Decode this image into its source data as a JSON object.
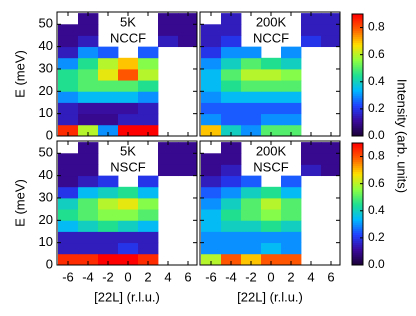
{
  "chart_data": [
    {
      "type": "heatmap",
      "annotation": [
        "5K",
        "NCCF"
      ],
      "ylabel": "E (meV)",
      "x_bins": [
        -7,
        -5,
        -3,
        -1,
        1,
        3,
        5,
        7
      ],
      "y_bins": [
        0,
        5,
        10,
        15,
        20,
        25,
        30,
        35,
        40,
        45,
        50,
        55
      ],
      "xlim": [
        -7.1,
        6.9
      ],
      "ylim": [
        0,
        55.5
      ],
      "xticks": [
        -6,
        -4,
        -2,
        0,
        2,
        4,
        6
      ],
      "yticks": [
        0,
        10,
        20,
        30,
        40,
        50
      ],
      "values": [
        [
          0.85,
          0.6,
          0.3,
          0.9,
          0.9,
          null,
          null
        ],
        [
          0.15,
          0.1,
          0.1,
          0.15,
          0.15,
          null,
          null
        ],
        [
          0.15,
          0.12,
          0.12,
          0.12,
          0.15,
          null,
          null
        ],
        [
          0.3,
          0.35,
          0.35,
          0.35,
          0.3,
          null,
          null
        ],
        [
          0.45,
          0.5,
          0.5,
          0.5,
          0.45,
          null,
          null
        ],
        [
          0.45,
          0.5,
          0.65,
          0.8,
          0.6,
          null,
          null
        ],
        [
          0.3,
          0.45,
          0.6,
          0.7,
          0.55,
          null,
          null
        ],
        [
          0.15,
          0.3,
          0.25,
          null,
          0.25,
          null,
          null
        ],
        [
          0.1,
          0.15,
          null,
          null,
          null,
          0.15,
          0.1
        ],
        [
          0.1,
          0.1,
          null,
          null,
          null,
          0.1,
          0.1
        ],
        [
          null,
          0.1,
          null,
          null,
          null,
          0.1,
          0.1
        ]
      ]
    },
    {
      "type": "heatmap",
      "annotation": [
        "200K",
        "NCCF"
      ],
      "x_bins": [
        -7,
        -5,
        -3,
        -1,
        1,
        3,
        5,
        7
      ],
      "y_bins": [
        0,
        5,
        10,
        15,
        20,
        25,
        30,
        35,
        40,
        45,
        50,
        55
      ],
      "xlim": [
        -7.1,
        6.9
      ],
      "ylim": [
        0,
        55.5
      ],
      "xticks": [
        -6,
        -4,
        -2,
        0,
        2,
        4,
        6
      ],
      "yticks": [
        0,
        10,
        20,
        30,
        40,
        50
      ],
      "values": [
        [
          0.7,
          0.4,
          0.3,
          0.5,
          0.5,
          null,
          null
        ],
        [
          0.3,
          0.25,
          0.25,
          0.3,
          0.3,
          null,
          null
        ],
        [
          0.25,
          0.25,
          0.25,
          0.25,
          0.25,
          null,
          null
        ],
        [
          0.3,
          0.35,
          0.35,
          0.35,
          0.35,
          null,
          null
        ],
        [
          0.35,
          0.45,
          0.5,
          0.5,
          0.5,
          null,
          null
        ],
        [
          0.35,
          0.5,
          0.6,
          0.6,
          0.55,
          null,
          null
        ],
        [
          0.3,
          0.4,
          0.5,
          0.45,
          0.4,
          null,
          null
        ],
        [
          0.2,
          0.3,
          0.3,
          null,
          0.3,
          null,
          null
        ],
        [
          0.15,
          0.2,
          null,
          null,
          null,
          0.2,
          0.15
        ],
        [
          0.15,
          0.15,
          null,
          null,
          null,
          0.15,
          0.15
        ],
        [
          null,
          0.15,
          null,
          null,
          null,
          0.15,
          0.15
        ]
      ]
    },
    {
      "type": "heatmap",
      "annotation": [
        "5K",
        "NSCF"
      ],
      "ylabel": "E (meV)",
      "xlabel": "[22L] (r.l.u.)",
      "x_bins": [
        -7,
        -5,
        -3,
        -1,
        1,
        3,
        5,
        7
      ],
      "y_bins": [
        0,
        5,
        10,
        15,
        20,
        25,
        30,
        35,
        40,
        45,
        50,
        55
      ],
      "xlim": [
        -7.1,
        6.9
      ],
      "ylim": [
        0,
        55.5
      ],
      "xticks": [
        -6,
        -4,
        -2,
        0,
        2,
        4,
        6
      ],
      "yticks": [
        0,
        10,
        20,
        30,
        40,
        50
      ],
      "values": [
        [
          0.85,
          0.85,
          0.9,
          0.9,
          0.85,
          null,
          null
        ],
        [
          0.15,
          0.15,
          0.15,
          0.2,
          0.15,
          null,
          null
        ],
        [
          0.15,
          0.15,
          0.15,
          0.15,
          0.15,
          null,
          null
        ],
        [
          0.35,
          0.4,
          0.45,
          0.4,
          0.35,
          null,
          null
        ],
        [
          0.45,
          0.5,
          0.55,
          0.55,
          0.5,
          null,
          null
        ],
        [
          0.4,
          0.5,
          0.6,
          0.65,
          0.55,
          null,
          null
        ],
        [
          0.2,
          0.35,
          0.4,
          0.45,
          0.35,
          null,
          null
        ],
        [
          0.1,
          0.15,
          0.2,
          null,
          0.2,
          null,
          null
        ],
        [
          0.1,
          0.1,
          null,
          null,
          null,
          0.1,
          0.1
        ],
        [
          0.1,
          0.1,
          null,
          null,
          null,
          0.1,
          0.1
        ],
        [
          null,
          0.1,
          null,
          null,
          null,
          0.1,
          0.1
        ]
      ]
    },
    {
      "type": "heatmap",
      "annotation": [
        "200K",
        "NSCF"
      ],
      "xlabel": "[22L] (r.l.u.)",
      "x_bins": [
        -7,
        -5,
        -3,
        -1,
        1,
        3,
        5,
        7
      ],
      "y_bins": [
        0,
        5,
        10,
        15,
        20,
        25,
        30,
        35,
        40,
        45,
        50,
        55
      ],
      "xlim": [
        -7.1,
        6.9
      ],
      "ylim": [
        0,
        55.5
      ],
      "xticks": [
        -6,
        -4,
        -2,
        0,
        2,
        4,
        6
      ],
      "yticks": [
        0,
        10,
        20,
        30,
        40,
        50
      ],
      "values": [
        [
          0.6,
          0.8,
          0.7,
          0.8,
          0.8,
          null,
          null
        ],
        [
          0.3,
          0.3,
          0.3,
          0.35,
          0.3,
          null,
          null
        ],
        [
          0.3,
          0.3,
          0.3,
          0.3,
          0.3,
          null,
          null
        ],
        [
          0.35,
          0.4,
          0.4,
          0.45,
          0.4,
          null,
          null
        ],
        [
          0.35,
          0.45,
          0.5,
          0.55,
          0.5,
          null,
          null
        ],
        [
          0.3,
          0.4,
          0.5,
          0.6,
          0.5,
          null,
          null
        ],
        [
          0.25,
          0.3,
          0.4,
          0.45,
          0.35,
          null,
          null
        ],
        [
          0.15,
          0.2,
          0.25,
          null,
          0.25,
          null,
          null
        ],
        [
          0.1,
          0.15,
          null,
          null,
          null,
          0.15,
          0.1
        ],
        [
          0.1,
          0.1,
          null,
          null,
          null,
          0.1,
          0.1
        ],
        [
          null,
          0.1,
          null,
          null,
          null,
          0.1,
          0.1
        ]
      ]
    },
    {
      "type": "colorbar",
      "label": "Intensity (arb. units)",
      "clim": [
        0,
        0.9
      ],
      "colormap": [
        "#1a0033",
        "#3a0a9a",
        "#2040ff",
        "#00b8ff",
        "#20e090",
        "#90ff40",
        "#ffe000",
        "#ff6000",
        "#ff0000"
      ],
      "cticks": [
        {
          "value": 0,
          "label": "0.0"
        },
        {
          "value": 0.2,
          "label": "0.2"
        },
        {
          "value": 0.4,
          "label": "0.4"
        },
        {
          "value": 0.6,
          "label": "0.6"
        },
        {
          "value": 0.8,
          "label": "0.8"
        }
      ]
    },
    {
      "type": "colorbar",
      "clim": [
        0,
        0.9
      ],
      "colormap": [
        "#1a0033",
        "#3a0a9a",
        "#2040ff",
        "#00b8ff",
        "#20e090",
        "#90ff40",
        "#ffe000",
        "#ff6000",
        "#ff0000"
      ],
      "cticks": [
        {
          "value": 0,
          "label": "0.0"
        },
        {
          "value": 0.2,
          "label": "0.2"
        },
        {
          "value": 0.4,
          "label": "0.4"
        },
        {
          "value": 0.6,
          "label": "0.6"
        },
        {
          "value": 0.8,
          "label": "0.8"
        }
      ]
    }
  ]
}
